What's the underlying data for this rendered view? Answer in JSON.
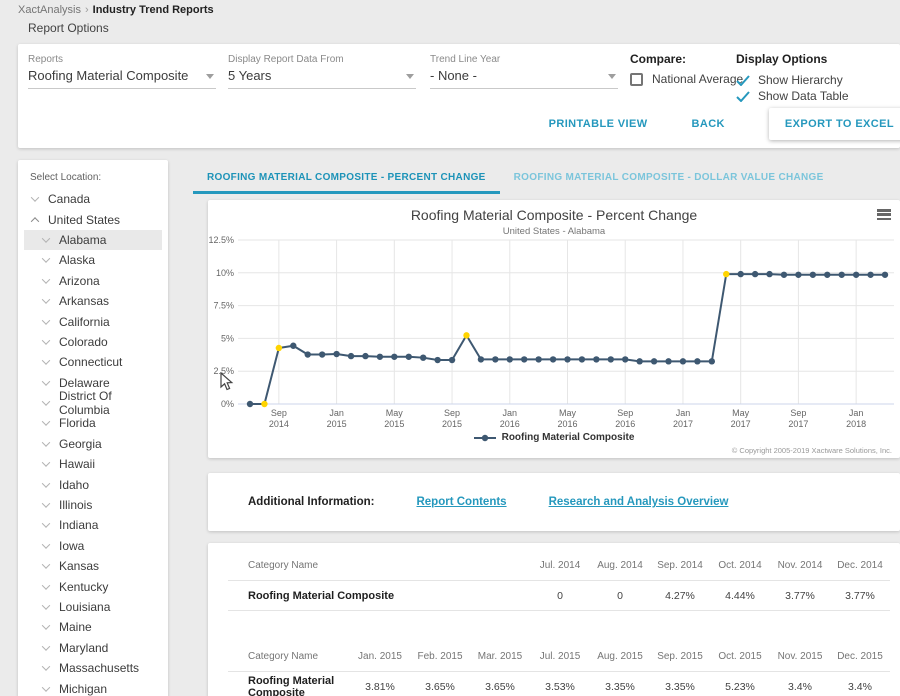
{
  "breadcrumb": {
    "parent": "XactAnalysis",
    "separator": "›",
    "current": "Industry Trend Reports"
  },
  "page": {
    "section_label": "Report Options"
  },
  "options": {
    "reports": {
      "label": "Reports",
      "value": "Roofing Material Composite"
    },
    "data_from": {
      "label": "Display Report Data From",
      "value": "5 Years"
    },
    "trend_line_year": {
      "label": "Trend Line Year",
      "value": "- None -"
    },
    "compare": {
      "label": "Compare:",
      "checkbox_label": "National Average",
      "checked": false
    },
    "display_options": {
      "label": "Display Options",
      "items": [
        {
          "label": "Show Hierarchy",
          "checked": true
        },
        {
          "label": "Show Data Table",
          "checked": true
        }
      ]
    },
    "buttons": {
      "printable": "PRINTABLE VIEW",
      "back": "BACK",
      "export": "EXPORT TO EXCEL"
    }
  },
  "sidebar": {
    "title": "Select Location:",
    "items": [
      {
        "label": "Canada",
        "level": 0,
        "expanded": false,
        "selected": false
      },
      {
        "label": "United States",
        "level": 0,
        "expanded": true,
        "selected": false
      },
      {
        "label": "Alabama",
        "level": 1,
        "expanded": false,
        "selected": true
      },
      {
        "label": "Alaska",
        "level": 1,
        "expanded": false,
        "selected": false
      },
      {
        "label": "Arizona",
        "level": 1,
        "expanded": false,
        "selected": false
      },
      {
        "label": "Arkansas",
        "level": 1,
        "expanded": false,
        "selected": false
      },
      {
        "label": "California",
        "level": 1,
        "expanded": false,
        "selected": false
      },
      {
        "label": "Colorado",
        "level": 1,
        "expanded": false,
        "selected": false
      },
      {
        "label": "Connecticut",
        "level": 1,
        "expanded": false,
        "selected": false
      },
      {
        "label": "Delaware",
        "level": 1,
        "expanded": false,
        "selected": false
      },
      {
        "label": "District Of Columbia",
        "level": 1,
        "expanded": false,
        "selected": false
      },
      {
        "label": "Florida",
        "level": 1,
        "expanded": false,
        "selected": false
      },
      {
        "label": "Georgia",
        "level": 1,
        "expanded": false,
        "selected": false
      },
      {
        "label": "Hawaii",
        "level": 1,
        "expanded": false,
        "selected": false
      },
      {
        "label": "Idaho",
        "level": 1,
        "expanded": false,
        "selected": false
      },
      {
        "label": "Illinois",
        "level": 1,
        "expanded": false,
        "selected": false
      },
      {
        "label": "Indiana",
        "level": 1,
        "expanded": false,
        "selected": false
      },
      {
        "label": "Iowa",
        "level": 1,
        "expanded": false,
        "selected": false
      },
      {
        "label": "Kansas",
        "level": 1,
        "expanded": false,
        "selected": false
      },
      {
        "label": "Kentucky",
        "level": 1,
        "expanded": false,
        "selected": false
      },
      {
        "label": "Louisiana",
        "level": 1,
        "expanded": false,
        "selected": false
      },
      {
        "label": "Maine",
        "level": 1,
        "expanded": false,
        "selected": false
      },
      {
        "label": "Maryland",
        "level": 1,
        "expanded": false,
        "selected": false
      },
      {
        "label": "Massachusetts",
        "level": 1,
        "expanded": false,
        "selected": false
      },
      {
        "label": "Michigan",
        "level": 1,
        "expanded": false,
        "selected": false
      }
    ]
  },
  "tabs": [
    {
      "label": "ROOFING MATERIAL COMPOSITE - PERCENT CHANGE",
      "active": true
    },
    {
      "label": "ROOFING MATERIAL COMPOSITE - DOLLAR VALUE CHANGE",
      "active": false
    }
  ],
  "chart_data": {
    "type": "line",
    "title": "Roofing Material Composite - Percent Change",
    "subtitle": "United States - Alabama",
    "legend": "Roofing Material Composite",
    "copyright": "© Copyright 2005-2019 Xactware Solutions, Inc.",
    "line_color": "#3e5871",
    "highlight_color": "#ffd400",
    "grid_color": "#e6e6e6",
    "axis_line_color": "#ccd6eb",
    "ylim": [
      0,
      12.5
    ],
    "yticks": [
      {
        "v": 0,
        "label": "0%"
      },
      {
        "v": 2.5,
        "label": "2.5%"
      },
      {
        "v": 5,
        "label": "5%"
      },
      {
        "v": 7.5,
        "label": "7.5%"
      },
      {
        "v": 10,
        "label": "10%"
      },
      {
        "v": 12.5,
        "label": "12.5%"
      }
    ],
    "x": [
      "Jul 2014",
      "Aug 2014",
      "Sep 2014",
      "Oct 2014",
      "Nov 2014",
      "Dec 2014",
      "Jan 2015",
      "Feb 2015",
      "Mar 2015",
      "Apr 2015",
      "May 2015",
      "Jun 2015",
      "Jul 2015",
      "Aug 2015",
      "Sep 2015",
      "Oct 2015",
      "Nov 2015",
      "Dec 2015",
      "Jan 2016",
      "Feb 2016",
      "Mar 2016",
      "Apr 2016",
      "May 2016",
      "Jun 2016",
      "Jul 2016",
      "Aug 2016",
      "Sep 2016",
      "Oct 2016",
      "Nov 2016",
      "Dec 2016",
      "Jan 2017",
      "Feb 2017",
      "Mar 2017",
      "Apr 2017",
      "May 2017",
      "Jun 2017",
      "Jul 2017",
      "Aug 2017",
      "Sep 2017",
      "Oct 2017",
      "Nov 2017",
      "Dec 2017",
      "Jan 2018",
      "Feb 2018",
      "Mar 2018"
    ],
    "x_ticks": [
      [
        2,
        "Sep",
        "2014"
      ],
      [
        6,
        "Jan",
        "2015"
      ],
      [
        10,
        "May",
        "2015"
      ],
      [
        14,
        "Sep",
        "2015"
      ],
      [
        18,
        "Jan",
        "2016"
      ],
      [
        22,
        "May",
        "2016"
      ],
      [
        26,
        "Sep",
        "2016"
      ],
      [
        30,
        "Jan",
        "2017"
      ],
      [
        34,
        "May",
        "2017"
      ],
      [
        38,
        "Sep",
        "2017"
      ],
      [
        42,
        "Jan",
        "2018"
      ]
    ],
    "series": [
      {
        "name": "Roofing Material Composite",
        "values": [
          0,
          0,
          4.27,
          4.44,
          3.77,
          3.77,
          3.81,
          3.65,
          3.65,
          3.6,
          3.6,
          3.6,
          3.53,
          3.35,
          3.35,
          5.23,
          3.4,
          3.4,
          3.4,
          3.4,
          3.4,
          3.4,
          3.4,
          3.4,
          3.4,
          3.4,
          3.4,
          3.25,
          3.25,
          3.25,
          3.25,
          3.25,
          3.25,
          9.9,
          9.9,
          9.9,
          9.9,
          9.85,
          9.85,
          9.85,
          9.85,
          9.85,
          9.85,
          9.85,
          9.85
        ],
        "highlight_indices": [
          1,
          2,
          15,
          33
        ]
      }
    ]
  },
  "additional_info": {
    "label": "Additional Information:",
    "links": [
      "Report Contents",
      "Research and Analysis Overview"
    ]
  },
  "tables": [
    {
      "headers": [
        "Category Name",
        "Jul. 2014",
        "Aug. 2014",
        "Sep. 2014",
        "Oct. 2014",
        "Nov. 2014",
        "Dec. 2014"
      ],
      "rows": [
        [
          "Roofing Material Composite",
          "0",
          "0",
          "4.27%",
          "4.44%",
          "3.77%",
          "3.77%"
        ]
      ]
    },
    {
      "headers": [
        "Category Name",
        "Jan. 2015",
        "Feb. 2015",
        "Mar. 2015",
        "Jul. 2015",
        "Aug. 2015",
        "Sep. 2015",
        "Oct. 2015",
        "Nov. 2015",
        "Dec. 2015"
      ],
      "rows": [
        [
          "Roofing Material Composite",
          "3.81%",
          "3.65%",
          "3.65%",
          "3.53%",
          "3.35%",
          "3.35%",
          "5.23%",
          "3.4%",
          "3.4%"
        ]
      ]
    }
  ],
  "colors": {
    "accent": "#2598bd",
    "accent_light": "#7bc5db",
    "selected_bg": "#e9e9e9"
  }
}
